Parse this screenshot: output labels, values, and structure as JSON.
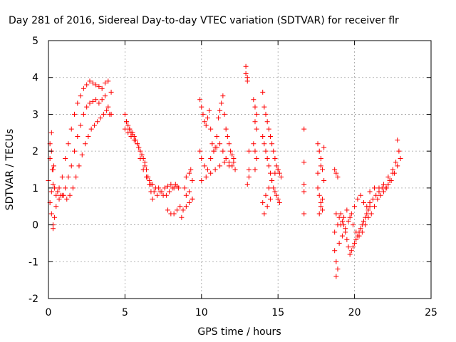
{
  "chart_data": {
    "type": "scatter",
    "title": "Day 281 of 2016, Sidereal Day-to-day VTEC variation (SDTVAR) for receiver flr",
    "xlabel": "GPS time / hours",
    "ylabel": "SDTVAR / TECUs",
    "xlim": [
      0,
      25
    ],
    "ylim": [
      -2,
      5
    ],
    "xticks": [
      "0",
      "5",
      "10",
      "15",
      "20",
      "25"
    ],
    "yticks": [
      "-2",
      "-1",
      "0",
      "1",
      "2",
      "3",
      "4",
      "5"
    ],
    "grid": true,
    "marker": "plus",
    "color": "#ff0000",
    "series": [
      {
        "x": [
          0.0,
          0.1,
          0.2,
          0.3,
          0.4,
          0.5,
          0.7,
          0.9,
          1.1,
          1.3,
          1.5,
          1.7,
          1.9,
          2.1,
          2.3,
          2.5,
          2.7,
          2.9,
          3.1,
          3.3,
          3.5,
          3.7,
          3.9,
          4.1,
          0.1,
          0.2,
          0.3,
          0.5,
          0.7,
          0.9,
          1.1,
          1.3,
          1.5,
          1.7,
          1.9,
          2.1,
          2.3,
          2.5,
          2.7,
          2.9,
          3.1,
          3.3,
          3.5,
          3.7,
          3.9,
          4.1,
          0.2,
          0.3,
          0.4,
          0.6,
          0.8,
          1.0,
          1.2,
          1.4,
          1.6,
          1.8,
          2.0,
          2.2,
          2.4,
          2.6,
          2.8,
          3.0,
          3.2,
          3.4,
          3.6,
          3.8,
          4.0,
          0.1,
          0.2,
          0.3,
          0.4,
          0.25,
          0.35,
          5.0,
          5.1,
          5.2,
          5.3,
          5.4,
          5.5,
          5.6,
          5.7,
          5.8,
          5.9,
          6.0,
          6.1,
          6.2,
          6.3,
          6.4,
          6.5,
          6.6,
          6.7,
          6.8,
          5.0,
          5.2,
          5.4,
          5.6,
          5.8,
          6.0,
          6.2,
          6.4,
          6.6,
          6.8,
          7.0,
          7.2,
          7.4,
          7.6,
          7.8,
          8.0,
          8.2,
          8.4,
          5.1,
          5.3,
          5.5,
          5.7,
          5.9,
          6.1,
          6.3,
          6.5,
          6.7,
          6.9,
          7.1,
          7.3,
          7.5,
          7.7,
          7.9,
          8.1,
          8.3,
          8.5,
          7.8,
          8.0,
          8.2,
          8.4,
          8.6,
          8.8,
          9.0,
          9.2,
          9.4,
          9.0,
          9.2,
          9.4,
          9.0,
          9.2,
          9.4,
          8.7,
          8.9,
          9.3,
          9.9,
          10.0,
          10.1,
          10.2,
          10.3,
          10.4,
          10.5,
          10.6,
          10.7,
          10.8,
          10.9,
          11.0,
          11.1,
          11.2,
          11.3,
          11.4,
          11.5,
          11.6,
          11.7,
          11.8,
          11.9,
          12.0,
          12.1,
          9.9,
          10.0,
          10.2,
          10.4,
          10.6,
          10.8,
          11.0,
          11.2,
          11.4,
          11.6,
          11.8,
          12.0,
          12.2,
          10.0,
          10.3,
          10.6,
          10.9,
          11.2,
          11.5,
          11.8,
          12.1,
          12.9,
          12.9,
          13.0,
          13.0,
          13.1,
          13.1,
          13.0,
          13.1,
          13.4,
          13.5,
          13.6,
          13.5,
          13.6,
          13.4,
          13.5,
          13.6,
          13.5,
          14.0,
          14.1,
          14.2,
          14.3,
          14.4,
          14.5,
          14.6,
          14.7,
          14.8,
          14.9,
          15.0,
          15.1,
          15.2,
          14.0,
          14.1,
          14.2,
          14.3,
          14.4,
          14.5,
          14.6,
          14.7,
          14.8,
          14.9,
          15.0,
          15.1,
          14.0,
          14.2,
          14.4,
          14.6,
          14.8,
          15.0,
          14.1,
          14.3,
          14.5,
          16.7,
          16.7,
          16.7,
          16.7,
          16.7,
          17.6,
          17.7,
          17.8,
          17.9,
          18.0,
          17.6,
          17.7,
          17.8,
          17.9,
          18.0,
          17.7,
          17.8,
          17.9,
          17.6,
          17.8,
          18.7,
          18.8,
          18.9,
          18.8,
          18.9,
          18.7,
          18.8,
          18.9,
          18.8,
          18.7,
          19.0,
          19.1,
          19.2,
          19.3,
          19.4,
          19.5,
          19.6,
          19.7,
          19.8,
          19.9,
          20.0,
          20.1,
          20.2,
          20.3,
          20.4,
          20.5,
          20.6,
          20.7,
          20.8,
          20.9,
          21.0,
          19.0,
          19.2,
          19.4,
          19.6,
          19.8,
          20.0,
          20.2,
          20.4,
          20.6,
          20.8,
          21.0,
          19.1,
          19.3,
          19.5,
          19.7,
          19.9,
          20.1,
          20.3,
          20.5,
          20.7,
          20.9,
          21.0,
          21.2,
          21.4,
          21.6,
          21.8,
          22.0,
          22.2,
          22.4,
          22.6,
          22.8,
          23.0,
          21.1,
          21.3,
          21.5,
          21.7,
          21.9,
          22.1,
          22.3,
          22.5,
          22.7,
          22.9,
          21.0,
          21.3,
          21.6,
          21.9,
          22.2,
          22.5,
          22.8
        ],
        "y": [
          1.2,
          1.8,
          2.5,
          1.5,
          1.0,
          0.8,
          1.0,
          1.3,
          1.8,
          2.2,
          2.6,
          3.0,
          3.3,
          3.5,
          3.7,
          3.8,
          3.9,
          3.85,
          3.8,
          3.75,
          3.7,
          3.85,
          3.9,
          3.6,
          0.6,
          0.3,
          0.0,
          0.5,
          0.7,
          0.8,
          1.0,
          1.3,
          1.6,
          2.0,
          2.4,
          2.7,
          3.0,
          3.2,
          3.3,
          3.35,
          3.4,
          3.3,
          3.4,
          3.5,
          3.2,
          3.0,
          0.9,
          1.1,
          1.0,
          0.9,
          0.8,
          0.8,
          0.7,
          0.8,
          1.0,
          1.3,
          1.6,
          1.9,
          2.2,
          2.4,
          2.6,
          2.7,
          2.8,
          2.9,
          3.0,
          3.1,
          3.0,
          2.2,
          2.0,
          -0.1,
          0.2,
          1.5,
          1.6,
          3.0,
          2.8,
          2.7,
          2.6,
          2.5,
          2.45,
          2.4,
          2.3,
          2.2,
          2.1,
          2.0,
          1.9,
          1.8,
          1.7,
          1.5,
          1.3,
          1.1,
          0.9,
          0.7,
          2.6,
          2.5,
          2.4,
          2.3,
          2.2,
          1.8,
          1.5,
          1.3,
          1.2,
          1.1,
          1.0,
          1.0,
          0.9,
          1.0,
          1.05,
          1.1,
          1.0,
          1.05,
          2.8,
          2.6,
          2.5,
          2.3,
          2.1,
          1.9,
          1.6,
          1.3,
          1.1,
          0.9,
          0.8,
          0.9,
          0.8,
          0.8,
          0.9,
          1.0,
          1.1,
          1.0,
          0.4,
          0.3,
          0.3,
          0.4,
          0.5,
          0.4,
          0.5,
          0.6,
          0.7,
          1.3,
          1.4,
          1.2,
          0.8,
          0.9,
          0.7,
          0.2,
          1.0,
          1.5,
          3.4,
          3.2,
          3.0,
          2.8,
          2.7,
          2.9,
          3.1,
          2.6,
          2.2,
          2.0,
          2.1,
          2.4,
          2.9,
          3.1,
          3.3,
          3.5,
          3.0,
          2.6,
          2.4,
          2.2,
          2.0,
          1.9,
          1.8,
          2.0,
          1.8,
          1.6,
          1.5,
          1.8,
          2.0,
          2.1,
          2.2,
          2.0,
          1.8,
          1.7,
          1.6,
          1.5,
          1.2,
          1.3,
          1.4,
          1.5,
          1.6,
          1.7,
          1.6,
          1.7,
          4.3,
          4.1,
          4.0,
          3.9,
          2.0,
          1.3,
          1.1,
          1.5,
          3.4,
          3.2,
          3.0,
          2.8,
          2.6,
          2.2,
          2.0,
          1.8,
          1.5,
          3.6,
          3.2,
          3.0,
          2.8,
          2.6,
          2.4,
          2.2,
          2.0,
          1.8,
          1.6,
          1.5,
          1.4,
          1.3,
          2.4,
          2.2,
          2.0,
          1.8,
          1.6,
          1.4,
          1.2,
          1.0,
          0.9,
          0.8,
          0.7,
          0.6,
          0.6,
          0.8,
          1.0,
          1.2,
          1.4,
          1.5,
          0.3,
          0.5,
          0.7,
          2.6,
          1.7,
          1.1,
          0.9,
          0.3,
          2.2,
          2.0,
          1.8,
          1.5,
          1.2,
          1.0,
          0.8,
          0.6,
          0.4,
          2.1,
          0.3,
          0.5,
          0.7,
          1.4,
          1.6,
          1.5,
          1.4,
          1.3,
          0.3,
          0.0,
          -0.2,
          -1.0,
          -1.2,
          -1.4,
          -0.7,
          0.2,
          0.3,
          0.1,
          0.0,
          -0.2,
          -0.4,
          -0.6,
          -0.8,
          -0.7,
          -0.6,
          -0.5,
          -0.4,
          -0.3,
          -0.2,
          -0.1,
          0.0,
          0.1,
          0.2,
          0.3,
          0.4,
          0.5,
          -0.5,
          -0.3,
          -0.1,
          0.1,
          0.3,
          0.5,
          0.7,
          0.8,
          0.6,
          0.5,
          0.6,
          0.0,
          0.2,
          0.4,
          0.2,
          0.0,
          -0.2,
          -0.3,
          -0.2,
          0.0,
          0.2,
          0.6,
          0.7,
          0.8,
          0.9,
          1.0,
          1.0,
          1.1,
          1.2,
          1.4,
          1.6,
          1.8,
          0.3,
          0.5,
          0.7,
          0.8,
          0.9,
          1.0,
          1.2,
          1.4,
          1.7,
          2.0,
          0.9,
          1.0,
          1.0,
          1.1,
          1.3,
          1.5,
          2.3
        ]
      }
    ]
  }
}
